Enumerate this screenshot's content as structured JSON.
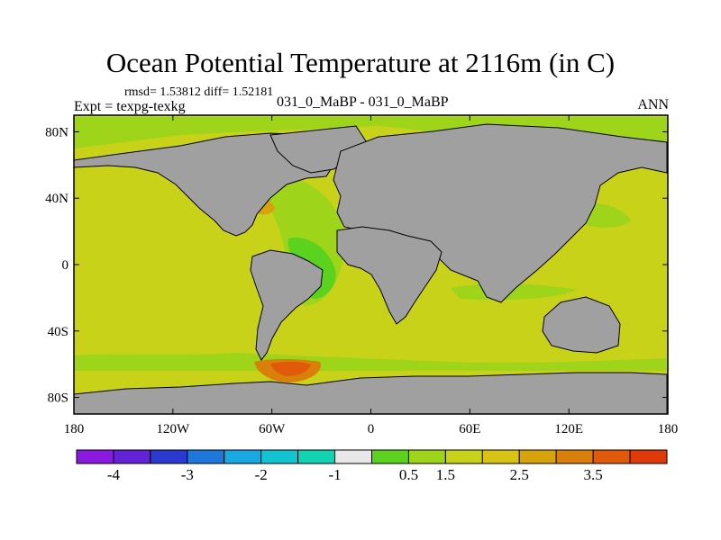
{
  "title": "Ocean Potential Temperature at 2116m (in C)",
  "stats": "rmsd= 1.53812 diff= 1.52181",
  "experiment": "Expt = texpg-texkg",
  "case_label": "031_0_MaBP - 031_0_MaBP",
  "season": "ANN",
  "map": {
    "projection": "cylindrical-equidistant",
    "lon_range": [
      -180,
      180
    ],
    "lat_range": [
      -90,
      90
    ],
    "land_color": "#a0a0a0",
    "dominant_ocean_value": "1.5 to 2.5 (yellow-green)",
    "x_ticks": [
      {
        "lon": -180,
        "label": "180"
      },
      {
        "lon": -120,
        "label": "120W"
      },
      {
        "lon": -60,
        "label": "60W"
      },
      {
        "lon": 0,
        "label": "0"
      },
      {
        "lon": 60,
        "label": "60E"
      },
      {
        "lon": 120,
        "label": "120E"
      },
      {
        "lon": 180,
        "label": "180"
      }
    ],
    "y_ticks": [
      {
        "lat": 80,
        "label": "80N"
      },
      {
        "lat": 40,
        "label": "40N"
      },
      {
        "lat": 0,
        "label": "0"
      },
      {
        "lat": -40,
        "label": "40S"
      },
      {
        "lat": -80,
        "label": "80S"
      }
    ]
  },
  "colorbar": {
    "colors": [
      "#8a1ae0",
      "#6422d8",
      "#2a3ad0",
      "#1e78dc",
      "#18a8e2",
      "#12c4d2",
      "#12d2b4",
      "#e8e8e8",
      "#5ad21e",
      "#9ed41a",
      "#c8d219",
      "#d8c212",
      "#d8a20a",
      "#d8800a",
      "#e05a0a",
      "#e03a0a"
    ],
    "labels": [
      {
        "after_box": 1,
        "text": "-4"
      },
      {
        "after_box": 3,
        "text": "-3"
      },
      {
        "after_box": 5,
        "text": "-2"
      },
      {
        "after_box": 7,
        "text": "-1"
      },
      {
        "after_box": 9,
        "text": "0.5"
      },
      {
        "after_box": 10,
        "text": "1.5"
      },
      {
        "after_box": 12,
        "text": "2.5"
      },
      {
        "after_box": 14,
        "text": "3.5"
      }
    ]
  }
}
